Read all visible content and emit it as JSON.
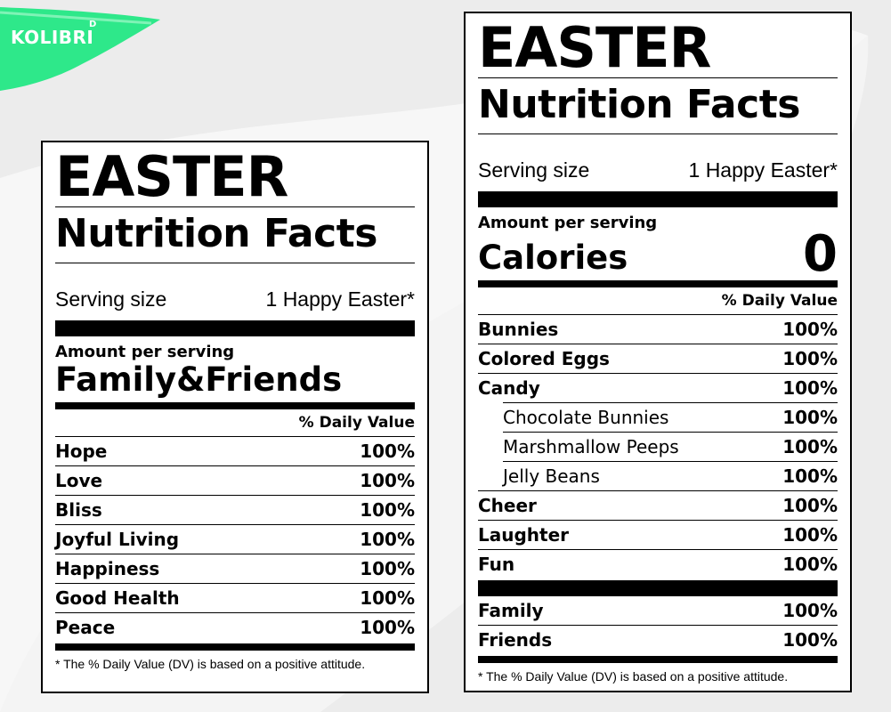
{
  "logo": {
    "text": "KOLIBRI",
    "sup": "D",
    "color": "#2ee88a"
  },
  "left_label": {
    "title_top": "EASTER",
    "title_main": "Nutrition Facts",
    "serving_label": "Serving size",
    "serving_value": "1 Happy Easter*",
    "amount_per_serving": "Amount per serving",
    "headline": "Family&Friends",
    "dv_header": "% Daily Value",
    "rows": [
      {
        "name": "Hope",
        "value": "100%"
      },
      {
        "name": "Love",
        "value": "100%"
      },
      {
        "name": "Bliss",
        "value": "100%"
      },
      {
        "name": "Joyful Living",
        "value": "100%"
      },
      {
        "name": "Happiness",
        "value": "100%"
      },
      {
        "name": "Good Health",
        "value": "100%"
      },
      {
        "name": "Peace",
        "value": "100%"
      }
    ],
    "footnote": "* The % Daily Value (DV) is based on a positive attitude."
  },
  "right_label": {
    "title_top": "EASTER",
    "title_main": "Nutrition Facts",
    "serving_label": "Serving size",
    "serving_value": "1 Happy Easter*",
    "amount_per_serving": "Amount per serving",
    "calories_label": "Calories",
    "calories_value": "0",
    "dv_header": "% Daily Value",
    "rows": [
      {
        "name": "Bunnies",
        "value": "100%"
      },
      {
        "name": "Colored Eggs",
        "value": "100%"
      },
      {
        "name": "Candy",
        "value": "100%"
      },
      {
        "name": "Chocolate Bunnies",
        "value": "100%"
      },
      {
        "name": "Marshmallow Peeps",
        "value": "100%"
      },
      {
        "name": "Jelly Beans",
        "value": "100%"
      },
      {
        "name": "Cheer",
        "value": "100%"
      },
      {
        "name": "Laughter",
        "value": "100%"
      },
      {
        "name": "Fun",
        "value": "100%"
      }
    ],
    "rows_after_bar": [
      {
        "name": "Family",
        "value": "100%"
      },
      {
        "name": "Friends",
        "value": "100%"
      }
    ],
    "footnote": "* The % Daily Value (DV) is based on a positive attitude."
  }
}
